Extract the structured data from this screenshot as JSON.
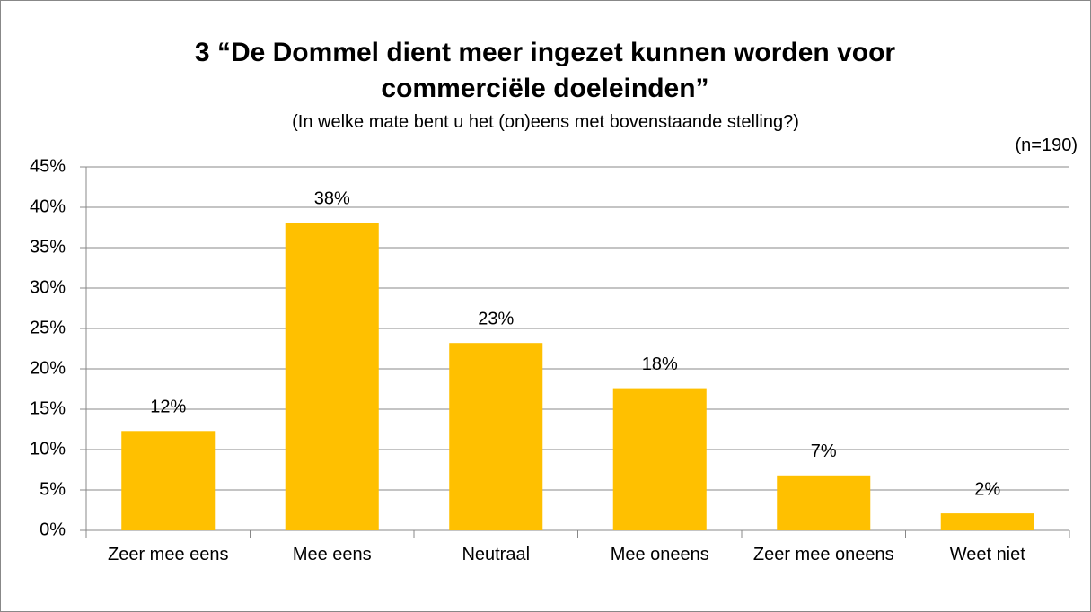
{
  "chart_data": {
    "type": "bar",
    "title": "3 “De Dommel dient meer ingezet kunnen worden voor commerciële doeleinden”",
    "subtitle": "(In welke mate bent u het (on)eens met bovenstaande stelling?)",
    "annotation": "(n=190)",
    "categories": [
      "Zeer mee eens",
      "Mee eens",
      "Neutraal",
      "Mee oneens",
      "Zeer mee oneens",
      "Weet niet"
    ],
    "values": [
      12.3,
      38.1,
      23.2,
      17.6,
      6.8,
      2.1
    ],
    "value_labels": [
      "12%",
      "38%",
      "23%",
      "18%",
      "7%",
      "2%"
    ],
    "color": "#ffc000",
    "ylim": [
      0,
      45
    ],
    "yticks": [
      {
        "value": 0,
        "label": "0%"
      },
      {
        "value": 5,
        "label": "5%"
      },
      {
        "value": 10,
        "label": "10%"
      },
      {
        "value": 15,
        "label": "15%"
      },
      {
        "value": 20,
        "label": "20%"
      },
      {
        "value": 25,
        "label": "25%"
      },
      {
        "value": 30,
        "label": "30%"
      },
      {
        "value": 35,
        "label": "35%"
      },
      {
        "value": 40,
        "label": "40%"
      },
      {
        "value": 45,
        "label": "45%"
      }
    ],
    "grid": true
  }
}
